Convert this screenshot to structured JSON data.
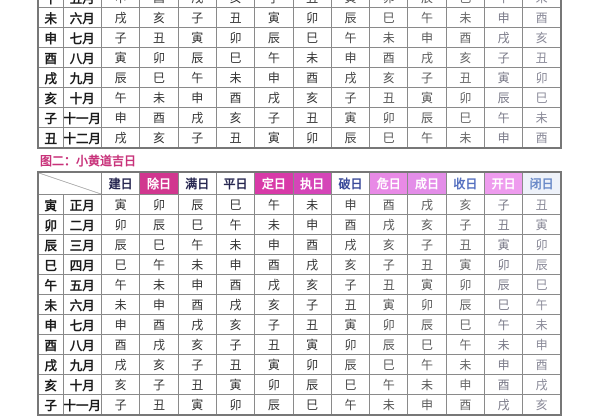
{
  "table1": {
    "rows": [
      {
        "branch": "午",
        "month": "五月",
        "cells": [
          "申",
          "酉",
          "戌",
          "亥",
          "子",
          "丑",
          "寅",
          "卯",
          "辰",
          "巳",
          "午",
          "未"
        ]
      },
      {
        "branch": "未",
        "month": "六月",
        "cells": [
          "戌",
          "亥",
          "子",
          "丑",
          "寅",
          "卯",
          "辰",
          "巳",
          "午",
          "未",
          "申",
          "酉"
        ]
      },
      {
        "branch": "申",
        "month": "七月",
        "cells": [
          "子",
          "丑",
          "寅",
          "卯",
          "辰",
          "巳",
          "午",
          "未",
          "申",
          "酉",
          "戌",
          "亥"
        ]
      },
      {
        "branch": "酉",
        "month": "八月",
        "cells": [
          "寅",
          "卯",
          "辰",
          "巳",
          "午",
          "未",
          "申",
          "酉",
          "戌",
          "亥",
          "子",
          "丑"
        ]
      },
      {
        "branch": "戌",
        "month": "九月",
        "cells": [
          "辰",
          "巳",
          "午",
          "未",
          "申",
          "酉",
          "戌",
          "亥",
          "子",
          "丑",
          "寅",
          "卯"
        ]
      },
      {
        "branch": "亥",
        "month": "十月",
        "cells": [
          "午",
          "未",
          "申",
          "酉",
          "戌",
          "亥",
          "子",
          "丑",
          "寅",
          "卯",
          "辰",
          "巳"
        ]
      },
      {
        "branch": "子",
        "month": "十一月",
        "cells": [
          "申",
          "酉",
          "戌",
          "亥",
          "子",
          "丑",
          "寅",
          "卯",
          "辰",
          "巳",
          "午",
          "未"
        ]
      },
      {
        "branch": "丑",
        "month": "十二月",
        "cells": [
          "戌",
          "亥",
          "子",
          "丑",
          "寅",
          "卯",
          "辰",
          "巳",
          "午",
          "未",
          "申",
          "酉"
        ]
      }
    ]
  },
  "table2": {
    "title": "图二：小黄道吉日",
    "headers": [
      {
        "label": "建日",
        "bg": "#ffffff",
        "color": "#262650"
      },
      {
        "label": "除日",
        "bg": "#d1378f",
        "color": "#ffffff"
      },
      {
        "label": "满日",
        "bg": "#ffffff",
        "color": "#262650"
      },
      {
        "label": "平日",
        "bg": "#ffffff",
        "color": "#262650"
      },
      {
        "label": "定日",
        "bg": "#d83aa8",
        "color": "#ffffff"
      },
      {
        "label": "执日",
        "bg": "#d545b8",
        "color": "#ffffff"
      },
      {
        "label": "破日",
        "bg": "#ffffff",
        "color": "#3a4a9a"
      },
      {
        "label": "危日",
        "bg": "#e88ae6",
        "color": "#ffffff"
      },
      {
        "label": "成日",
        "bg": "#e38de8",
        "color": "#ffffff"
      },
      {
        "label": "收日",
        "bg": "#ffffff",
        "color": "#5570c0"
      },
      {
        "label": "开日",
        "bg": "#ee9cee",
        "color": "#ffffff"
      },
      {
        "label": "闭日",
        "bg": "#eef2fa",
        "color": "#6a8ac8"
      }
    ],
    "rows": [
      {
        "branch": "寅",
        "month": "正月",
        "cells": [
          "寅",
          "卯",
          "辰",
          "巳",
          "午",
          "未",
          "申",
          "酉",
          "戌",
          "亥",
          "子",
          "丑"
        ]
      },
      {
        "branch": "卯",
        "month": "二月",
        "cells": [
          "卯",
          "辰",
          "巳",
          "午",
          "未",
          "申",
          "酉",
          "戌",
          "亥",
          "子",
          "丑",
          "寅"
        ]
      },
      {
        "branch": "辰",
        "month": "三月",
        "cells": [
          "辰",
          "巳",
          "午",
          "未",
          "申",
          "酉",
          "戌",
          "亥",
          "子",
          "丑",
          "寅",
          "卯"
        ]
      },
      {
        "branch": "巳",
        "month": "四月",
        "cells": [
          "巳",
          "午",
          "未",
          "申",
          "酉",
          "戌",
          "亥",
          "子",
          "丑",
          "寅",
          "卯",
          "辰"
        ]
      },
      {
        "branch": "午",
        "month": "五月",
        "cells": [
          "午",
          "未",
          "申",
          "酉",
          "戌",
          "亥",
          "子",
          "丑",
          "寅",
          "卯",
          "辰",
          "巳"
        ]
      },
      {
        "branch": "未",
        "month": "六月",
        "cells": [
          "未",
          "申",
          "酉",
          "戌",
          "亥",
          "子",
          "丑",
          "寅",
          "卯",
          "辰",
          "巳",
          "午"
        ]
      },
      {
        "branch": "申",
        "month": "七月",
        "cells": [
          "申",
          "酉",
          "戌",
          "亥",
          "子",
          "丑",
          "寅",
          "卯",
          "辰",
          "巳",
          "午",
          "未"
        ]
      },
      {
        "branch": "酉",
        "month": "八月",
        "cells": [
          "酉",
          "戌",
          "亥",
          "子",
          "丑",
          "寅",
          "卯",
          "辰",
          "巳",
          "午",
          "未",
          "申"
        ]
      },
      {
        "branch": "戌",
        "month": "九月",
        "cells": [
          "戌",
          "亥",
          "子",
          "丑",
          "寅",
          "卯",
          "辰",
          "巳",
          "午",
          "未",
          "申",
          "酉"
        ]
      },
      {
        "branch": "亥",
        "month": "十月",
        "cells": [
          "亥",
          "子",
          "丑",
          "寅",
          "卯",
          "辰",
          "巳",
          "午",
          "未",
          "申",
          "酉",
          "戌"
        ]
      },
      {
        "branch": "子",
        "month": "十一月",
        "cells": [
          "子",
          "丑",
          "寅",
          "卯",
          "辰",
          "巳",
          "午",
          "未",
          "申",
          "酉",
          "戌",
          "亥"
        ]
      }
    ]
  }
}
